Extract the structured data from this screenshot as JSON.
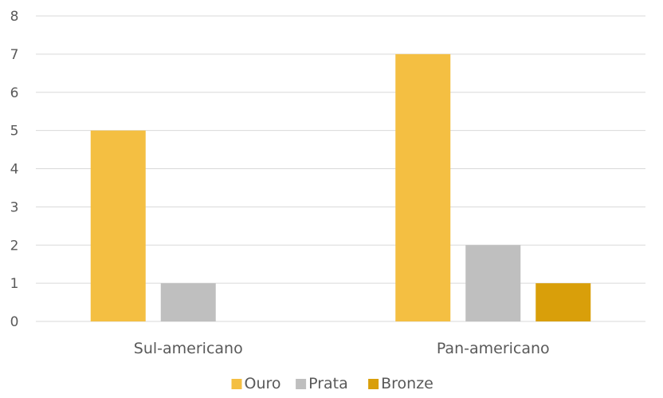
{
  "chart_data": {
    "type": "bar",
    "categories": [
      "Sul-americano",
      "Pan-americano"
    ],
    "series": [
      {
        "name": "Ouro",
        "values": [
          5,
          7
        ],
        "color": "#F4BF42"
      },
      {
        "name": "Prata",
        "values": [
          1,
          2
        ],
        "color": "#BFBFBF"
      },
      {
        "name": "Bronze",
        "values": [
          0,
          1
        ],
        "color": "#D99F0A"
      }
    ],
    "ylim": [
      0,
      8
    ],
    "yticks": [
      0,
      1,
      2,
      3,
      4,
      5,
      6,
      7,
      8
    ],
    "grid": true,
    "legend_position": "bottom",
    "title": "",
    "xlabel": "",
    "ylabel": ""
  }
}
